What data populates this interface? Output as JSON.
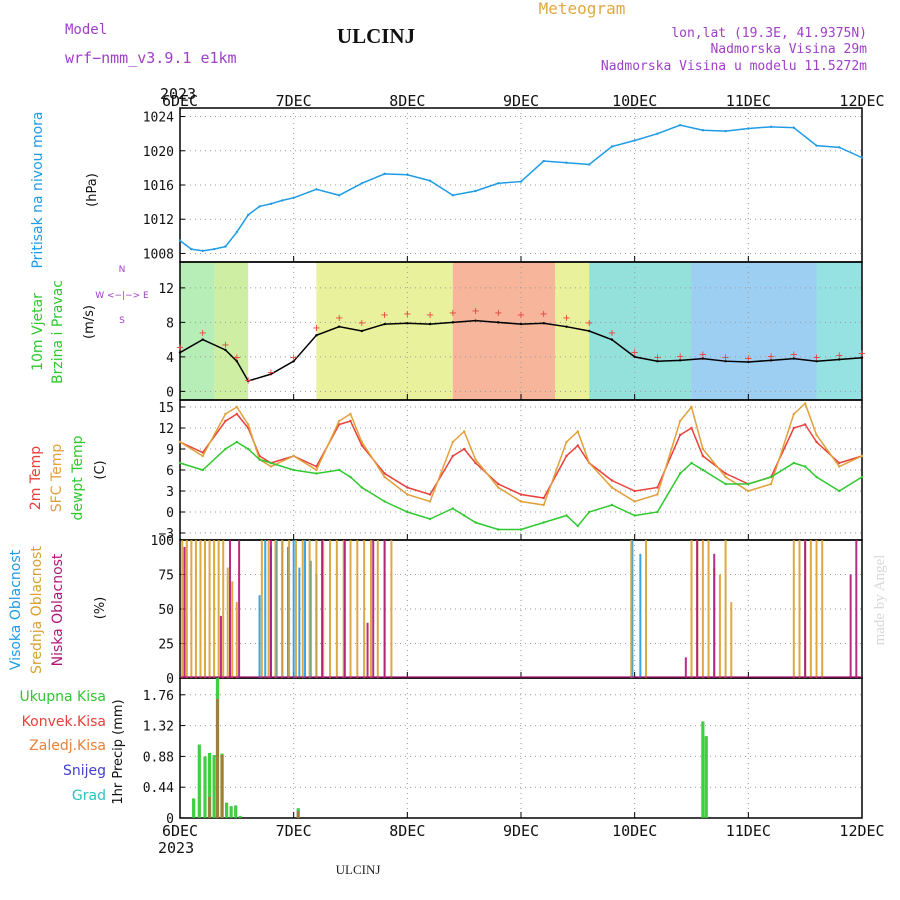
{
  "header": {
    "model_label": "Model",
    "model_name": "wrf−nmm_v3.9.1  e1km",
    "station": "ULCINJ",
    "product": "Meteogram",
    "lonlat": "lon,lat (19.3E, 41.9375N)",
    "elevation": "Nadmorska Visina 29m",
    "model_elevation": "Nadmorska Visina u modelu 11.5272m",
    "year": "2023",
    "footer_station": "ULCINJ",
    "credit": "made by Angel"
  },
  "colors": {
    "pressure": "#1E9BE6",
    "t2m": "#E8403A",
    "sfc": "#E0A03A",
    "dewpt": "#2FC82F",
    "cloud_high": "#1E9BE6",
    "cloud_mid": "#D8A030",
    "cloud_low": "#B0157A",
    "rain_total": "#2FC82F",
    "rain_conv": "#E8403A",
    "wind_speed_line": "#000000",
    "gust_marks": "#E8403A"
  },
  "time_axis": {
    "labels": [
      "6DEC",
      "7DEC",
      "8DEC",
      "9DEC",
      "10DEC",
      "11DEC",
      "12DEC"
    ]
  },
  "panels": {
    "pressure": {
      "ylabel_left": "Pritisak na nivou mora",
      "ylabel_unit": "(hPa)"
    },
    "wind": {
      "ylabel_left_1": "10m Vjetar",
      "ylabel_left_2": "Brzina i Pravac",
      "ylabel_unit": "(m/s)",
      "compass": "W <−|−> E",
      "compass_n": "N",
      "compass_s": "S"
    },
    "temp": {
      "label_t2m": "2m Temp",
      "label_sfc": "SFC Temp",
      "label_dew": "dewpt Temp",
      "ylabel_unit": "(C)"
    },
    "cloud": {
      "label_high": "Visoka Oblacnost",
      "label_mid": "Srednja Oblacnost",
      "label_low": "Niska Oblacnost",
      "ylabel_unit": "(%)"
    },
    "precip": {
      "label_total": "Ukupna Kisa",
      "label_conv": "Konvek.Kisa",
      "label_frz": "Zaledj.Kisa",
      "label_snow": "Snijeg",
      "label_grad": "Grad",
      "ylabel": "1hr Precip (mm)"
    }
  },
  "chart_data": [
    {
      "type": "line",
      "ylabel": "(hPa)",
      "ylim": [
        1007,
        1025
      ],
      "yticks": [
        1008,
        1012,
        1016,
        1020,
        1024
      ],
      "x_days": [
        0,
        0.1,
        0.2,
        0.3,
        0.4,
        0.5,
        0.6,
        0.7,
        0.8,
        0.9,
        1.0,
        1.2,
        1.4,
        1.6,
        1.8,
        2.0,
        2.2,
        2.4,
        2.6,
        2.8,
        3.0,
        3.2,
        3.4,
        3.6,
        3.8,
        4.0,
        4.2,
        4.4,
        4.6,
        4.8,
        5.0,
        5.2,
        5.4,
        5.6,
        5.8,
        6.0
      ],
      "series": [
        {
          "values": [
            1009.5,
            1008.5,
            1008.3,
            1008.5,
            1008.8,
            1010.5,
            1012.5,
            1013.5,
            1013.8,
            1014.2,
            1014.5,
            1015.5,
            1014.8,
            1016.2,
            1017.3,
            1017.2,
            1016.5,
            1014.8,
            1015.3,
            1016.2,
            1016.4,
            1018.8,
            1018.6,
            1018.4,
            1020.5,
            1021.2,
            1022.0,
            1023.0,
            1022.4,
            1022.3,
            1022.6,
            1022.8,
            1022.7,
            1020.6,
            1020.4,
            1019.2
          ]
        }
      ]
    },
    {
      "type": "line",
      "ylabel": "(m/s)",
      "ylim": [
        -1,
        15
      ],
      "yticks": [
        0,
        4,
        8,
        12
      ],
      "x_days": [
        0,
        0.2,
        0.4,
        0.5,
        0.6,
        0.8,
        1.0,
        1.2,
        1.4,
        1.6,
        1.8,
        2.0,
        2.2,
        2.4,
        2.6,
        2.8,
        3.0,
        3.2,
        3.4,
        3.6,
        3.8,
        4.0,
        4.2,
        4.4,
        4.6,
        4.8,
        5.0,
        5.2,
        5.4,
        5.6,
        5.8,
        6.0
      ],
      "series": [
        {
          "values": [
            4.5,
            6.0,
            4.8,
            3.5,
            1.2,
            2.0,
            3.5,
            6.5,
            7.5,
            7.0,
            7.8,
            7.9,
            7.8,
            8.0,
            8.2,
            8.0,
            7.8,
            7.9,
            7.5,
            7.0,
            6.0,
            4.0,
            3.5,
            3.6,
            3.8,
            3.5,
            3.4,
            3.6,
            3.8,
            3.5,
            3.7,
            3.9
          ]
        }
      ]
    },
    {
      "type": "line",
      "ylabel": "(C)",
      "ylim": [
        -4,
        16
      ],
      "yticks": [
        -3,
        0,
        3,
        6,
        9,
        12,
        15
      ],
      "x_days": [
        0,
        0.2,
        0.4,
        0.5,
        0.6,
        0.7,
        0.8,
        1.0,
        1.2,
        1.4,
        1.5,
        1.6,
        1.8,
        2.0,
        2.2,
        2.4,
        2.5,
        2.6,
        2.8,
        3.0,
        3.2,
        3.4,
        3.5,
        3.6,
        3.8,
        4.0,
        4.2,
        4.4,
        4.5,
        4.6,
        4.8,
        5.0,
        5.2,
        5.4,
        5.5,
        5.6,
        5.8,
        6.0
      ],
      "series": [
        {
          "name": "2m Temp",
          "values": [
            10.0,
            8.5,
            13.0,
            14.0,
            12.0,
            8.0,
            7.0,
            8.0,
            6.5,
            12.5,
            13.0,
            9.5,
            5.5,
            3.5,
            2.5,
            8.0,
            9.0,
            7.0,
            4.0,
            2.5,
            2.0,
            8.0,
            9.5,
            7.0,
            4.5,
            3.0,
            3.5,
            11.0,
            12.0,
            8.0,
            5.5,
            4.0,
            5.0,
            12.0,
            12.5,
            10.0,
            7.0,
            8.0
          ]
        },
        {
          "name": "SFC Temp",
          "values": [
            10.0,
            8.0,
            14.0,
            15.0,
            12.5,
            7.5,
            6.5,
            8.0,
            6.0,
            13.0,
            14.0,
            10.0,
            5.0,
            2.5,
            1.5,
            10.0,
            11.5,
            7.5,
            3.5,
            1.5,
            1.0,
            10.0,
            11.5,
            7.0,
            3.5,
            1.5,
            2.5,
            13.0,
            15.0,
            9.0,
            5.0,
            3.0,
            4.0,
            14.0,
            15.5,
            11.0,
            6.5,
            8.0
          ]
        },
        {
          "name": "dewpt Temp",
          "values": [
            7.0,
            6.0,
            9.0,
            10.0,
            9.0,
            7.5,
            7.0,
            6.0,
            5.5,
            6.0,
            5.0,
            3.5,
            1.5,
            0.0,
            -1.0,
            0.5,
            -0.5,
            -1.5,
            -2.5,
            -2.5,
            -1.5,
            -0.5,
            -2.0,
            0.0,
            1.0,
            -0.5,
            0.0,
            5.5,
            7.0,
            6.0,
            4.0,
            4.0,
            5.0,
            7.0,
            6.5,
            5.0,
            3.0,
            5.0
          ]
        }
      ]
    },
    {
      "type": "bar",
      "ylabel": "(%)",
      "ylim": [
        0,
        100
      ],
      "yticks": [
        0,
        25,
        50,
        75,
        100
      ],
      "series": [
        {
          "name": "Visoka Oblacnost",
          "x_days": [
            0.7,
            0.75,
            0.8,
            0.85,
            0.9,
            0.95,
            1.0,
            1.05,
            1.1,
            1.15,
            1.2,
            3.98,
            4.05
          ],
          "values": [
            60,
            100,
            95,
            100,
            100,
            95,
            100,
            80,
            100,
            85,
            75,
            100,
            90
          ]
        },
        {
          "name": "Srednja Oblacnost",
          "x_days": [
            0.02,
            0.06,
            0.1,
            0.14,
            0.18,
            0.22,
            0.26,
            0.3,
            0.34,
            0.38,
            0.42,
            0.46,
            0.5,
            0.72,
            0.78,
            0.84,
            0.9,
            0.96,
            1.02,
            1.08,
            1.14,
            1.2,
            1.26,
            1.32,
            1.38,
            1.44,
            1.5,
            1.56,
            1.62,
            1.68,
            1.74,
            1.8,
            1.86,
            3.97,
            4.1,
            4.5,
            4.55,
            4.6,
            4.65,
            4.7,
            4.75,
            4.8,
            4.85,
            5.4,
            5.45,
            5.5,
            5.55,
            5.6,
            5.65
          ],
          "values": [
            100,
            100,
            100,
            100,
            100,
            100,
            100,
            100,
            100,
            100,
            80,
            70,
            55,
            100,
            100,
            100,
            100,
            100,
            100,
            100,
            100,
            100,
            100,
            100,
            100,
            100,
            100,
            100,
            100,
            100,
            100,
            100,
            100,
            100,
            100,
            100,
            100,
            100,
            100,
            80,
            75,
            100,
            55,
            100,
            100,
            100,
            100,
            100,
            100
          ]
        },
        {
          "name": "Niska Oblacnost",
          "x_days": [
            0.04,
            0.36,
            0.44,
            0.52,
            0.8,
            1.25,
            1.45,
            1.65,
            1.7,
            1.8,
            4.45,
            4.55,
            4.7,
            5.5,
            5.9,
            5.95
          ],
          "values": [
            95,
            45,
            100,
            100,
            100,
            100,
            100,
            40,
            100,
            100,
            15,
            100,
            90,
            100,
            75,
            100
          ]
        }
      ]
    },
    {
      "type": "bar",
      "ylabel": "1hr Precip (mm)",
      "ylim": [
        0,
        2.0
      ],
      "yticks": [
        0,
        0.44,
        0.88,
        1.32,
        1.76
      ],
      "series": [
        {
          "name": "Ukupna Kisa",
          "x_days": [
            0.12,
            0.17,
            0.22,
            0.26,
            0.3,
            0.33,
            0.37,
            0.41,
            0.45,
            0.49,
            0.53,
            1.04,
            4.6,
            4.63
          ],
          "values": [
            0.28,
            1.05,
            0.88,
            0.93,
            0.9,
            2.0,
            0.92,
            0.22,
            0.17,
            0.18,
            0.03,
            0.14,
            1.38,
            1.17
          ]
        },
        {
          "name": "Konvek.Kisa",
          "x_days": [
            0.26,
            0.33,
            0.37,
            1.04
          ],
          "values": [
            0.3,
            1.7,
            0.9,
            0.1
          ]
        }
      ]
    }
  ]
}
